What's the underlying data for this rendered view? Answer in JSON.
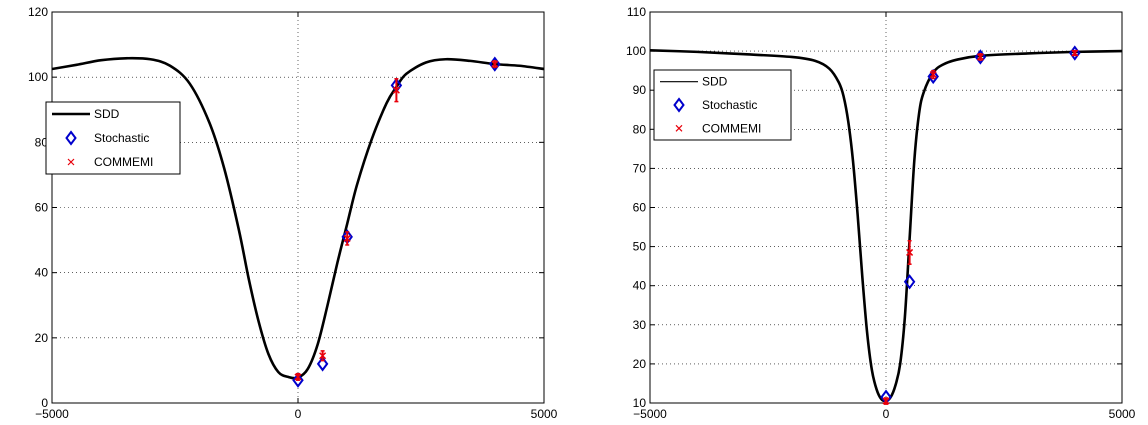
{
  "chart_data": [
    {
      "type": "line",
      "title": "",
      "xlabel": "",
      "ylabel": "",
      "xlim": [
        -5000,
        5000
      ],
      "ylim": [
        0,
        120
      ],
      "xticks": [
        -5000,
        0,
        5000
      ],
      "yticks": [
        0,
        20,
        40,
        60,
        80,
        100,
        120
      ],
      "grid": true,
      "legend_position": "left",
      "series": [
        {
          "name": "SDD",
          "style": "line",
          "color": "#000000",
          "x": [
            -5000,
            -4500,
            -4000,
            -3500,
            -3000,
            -2600,
            -2200,
            -1800,
            -1500,
            -1200,
            -1000,
            -800,
            -600,
            -400,
            -200,
            0,
            200,
            400,
            600,
            800,
            1000,
            1200,
            1500,
            1800,
            2000,
            2200,
            2600,
            3000,
            3500,
            4000,
            4500,
            5000
          ],
          "y": [
            102.5,
            103.8,
            105.2,
            105.8,
            105.5,
            103.5,
            98.0,
            86.0,
            72.0,
            53.0,
            38.0,
            25.0,
            15.0,
            9.5,
            8.0,
            7.8,
            10.5,
            18.0,
            30.0,
            43.0,
            55.0,
            67.0,
            81.0,
            92.0,
            97.0,
            101.0,
            104.5,
            105.5,
            105.0,
            104.0,
            103.5,
            102.5
          ]
        },
        {
          "name": "Stochastic",
          "style": "diamond",
          "color": "#0000cc",
          "x": [
            0,
            500,
            1000,
            2000,
            4000
          ],
          "y": [
            7,
            12,
            51,
            97.5,
            104
          ]
        },
        {
          "name": "COMMEMI",
          "style": "x-errorbar",
          "color": "#e8000b",
          "x": [
            0,
            500,
            1000,
            2000,
            4000
          ],
          "y": [
            8,
            14.5,
            50.5,
            96,
            104
          ],
          "err": [
            1,
            1.5,
            2,
            3.5,
            1
          ]
        }
      ]
    },
    {
      "type": "line",
      "title": "",
      "xlabel": "",
      "ylabel": "",
      "xlim": [
        -5000,
        5000
      ],
      "ylim": [
        10,
        110
      ],
      "xticks": [
        -5000,
        0,
        5000
      ],
      "yticks": [
        10,
        20,
        30,
        40,
        50,
        60,
        70,
        80,
        90,
        100,
        110
      ],
      "grid": true,
      "legend_position": "top-left",
      "series": [
        {
          "name": "SDD",
          "style": "line",
          "color": "#000000",
          "x": [
            -5000,
            -4000,
            -3000,
            -2000,
            -1500,
            -1200,
            -1000,
            -900,
            -800,
            -700,
            -600,
            -500,
            -400,
            -300,
            -200,
            -100,
            0,
            100,
            200,
            300,
            400,
            500,
            600,
            700,
            800,
            1000,
            1200,
            1500,
            2000,
            3000,
            4000,
            5000
          ],
          "y": [
            100.2,
            99.8,
            99.2,
            98.5,
            97.5,
            95.5,
            92.0,
            88.5,
            82.0,
            72.0,
            58.0,
            42.0,
            28.0,
            18.5,
            13.5,
            11.0,
            10.5,
            11.5,
            14.5,
            20.0,
            32.0,
            52.0,
            72.0,
            84.0,
            89.5,
            94.5,
            96.5,
            97.8,
            98.8,
            99.4,
            99.8,
            100.0
          ]
        },
        {
          "name": "Stochastic",
          "style": "diamond",
          "color": "#0000cc",
          "x": [
            0,
            500,
            1000,
            2000,
            4000
          ],
          "y": [
            11.5,
            41,
            93.5,
            98.5,
            99.5
          ]
        },
        {
          "name": "COMMEMI",
          "style": "x-errorbar",
          "color": "#e8000b",
          "x": [
            0,
            500,
            1000,
            2000,
            4000
          ],
          "y": [
            10.5,
            48.5,
            94,
            98.5,
            99.5
          ],
          "err": [
            0.8,
            3,
            1,
            0.8,
            0.6
          ]
        }
      ]
    }
  ]
}
